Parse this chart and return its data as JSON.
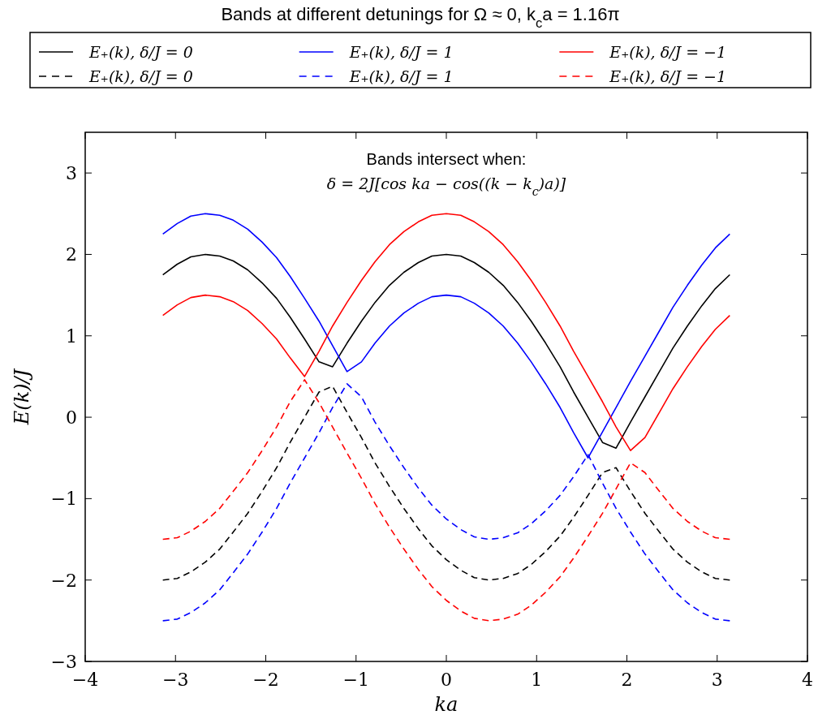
{
  "chart_data": {
    "type": "line",
    "title": "Bands at different detunings for Ω ≈ 0, k$_{c}$a = 1.16π",
    "xlabel": "ka",
    "ylabel": "E(k)/J",
    "annotations": [
      "Bands intersect when:",
      "δ = 2J[cos ka − cos((k − k$_{c}$)a)]"
    ],
    "x": [
      -3.14,
      -2.98,
      -2.83,
      -2.67,
      -2.51,
      -2.36,
      -2.2,
      -2.04,
      -1.88,
      -1.73,
      -1.57,
      -1.41,
      -1.26,
      -1.1,
      -0.94,
      -0.79,
      -0.63,
      -0.47,
      -0.31,
      -0.16,
      0,
      0.16,
      0.31,
      0.47,
      0.63,
      0.79,
      0.94,
      1.1,
      1.26,
      1.41,
      1.57,
      1.73,
      1.88,
      2.04,
      2.2,
      2.36,
      2.51,
      2.67,
      2.83,
      2.98,
      3.14
    ],
    "series": [
      {
        "name": "E₊(k), δ/J = 0",
        "color": "#000000",
        "line_style": "solid",
        "values": [
          1.75,
          1.88,
          1.97,
          2.0,
          1.98,
          1.92,
          1.81,
          1.65,
          1.46,
          1.23,
          0.96,
          0.68,
          0.62,
          0.91,
          1.18,
          1.41,
          1.62,
          1.78,
          1.9,
          1.98,
          2.0,
          1.98,
          1.9,
          1.78,
          1.62,
          1.41,
          1.18,
          0.91,
          0.62,
          0.31,
          0.0,
          -0.31,
          -0.38,
          -0.06,
          0.25,
          0.56,
          0.85,
          1.12,
          1.37,
          1.58,
          1.75
        ]
      },
      {
        "name": "E₊(k), δ/J = 0",
        "color": "#000000",
        "line_style": "dashed",
        "values": [
          -2.0,
          -1.98,
          -1.9,
          -1.78,
          -1.62,
          -1.41,
          -1.18,
          -0.91,
          -0.62,
          -0.31,
          0.0,
          0.31,
          0.38,
          0.06,
          -0.25,
          -0.56,
          -0.85,
          -1.12,
          -1.37,
          -1.58,
          -1.75,
          -1.88,
          -1.97,
          -2.0,
          -1.98,
          -1.92,
          -1.81,
          -1.65,
          -1.46,
          -1.23,
          -0.96,
          -0.68,
          -0.62,
          -0.91,
          -1.18,
          -1.41,
          -1.62,
          -1.78,
          -1.9,
          -1.98,
          -2.0
        ]
      },
      {
        "name": "E₊(k), δ/J = 1",
        "color": "#0000ff",
        "line_style": "solid",
        "values": [
          2.25,
          2.38,
          2.47,
          2.5,
          2.48,
          2.42,
          2.31,
          2.15,
          1.96,
          1.73,
          1.46,
          1.18,
          0.88,
          0.56,
          0.68,
          0.91,
          1.12,
          1.28,
          1.4,
          1.48,
          1.5,
          1.48,
          1.4,
          1.28,
          1.12,
          0.91,
          0.68,
          0.41,
          0.12,
          -0.19,
          -0.5,
          -0.18,
          0.12,
          0.44,
          0.75,
          1.06,
          1.35,
          1.62,
          1.87,
          2.08,
          2.25
        ]
      },
      {
        "name": "E₊(k), δ/J = 1",
        "color": "#0000ff",
        "line_style": "dashed",
        "values": [
          -2.5,
          -2.48,
          -2.4,
          -2.28,
          -2.12,
          -1.91,
          -1.68,
          -1.41,
          -1.12,
          -0.81,
          -0.5,
          -0.19,
          0.12,
          0.41,
          0.25,
          -0.06,
          -0.35,
          -0.62,
          -0.87,
          -1.08,
          -1.25,
          -1.38,
          -1.47,
          -1.5,
          -1.48,
          -1.42,
          -1.31,
          -1.15,
          -0.96,
          -0.73,
          -0.46,
          -0.81,
          -1.12,
          -1.41,
          -1.68,
          -1.91,
          -2.12,
          -2.28,
          -2.4,
          -2.48,
          -2.5
        ]
      },
      {
        "name": "E₊(k), δ/J = −1",
        "color": "#ff0000",
        "line_style": "solid",
        "values": [
          1.25,
          1.38,
          1.47,
          1.5,
          1.48,
          1.42,
          1.31,
          1.15,
          0.96,
          0.73,
          0.5,
          0.81,
          1.12,
          1.41,
          1.68,
          1.91,
          2.12,
          2.28,
          2.4,
          2.48,
          2.5,
          2.48,
          2.4,
          2.28,
          2.12,
          1.91,
          1.68,
          1.41,
          1.12,
          0.81,
          0.5,
          0.19,
          -0.12,
          -0.41,
          -0.25,
          0.06,
          0.35,
          0.62,
          0.87,
          1.08,
          1.25
        ]
      },
      {
        "name": "E₊(k), δ/J = −1",
        "color": "#ff0000",
        "line_style": "dashed",
        "values": [
          -1.5,
          -1.48,
          -1.4,
          -1.28,
          -1.12,
          -0.91,
          -0.68,
          -0.41,
          -0.12,
          0.19,
          0.46,
          0.18,
          -0.12,
          -0.44,
          -0.75,
          -1.06,
          -1.35,
          -1.62,
          -1.87,
          -2.08,
          -2.25,
          -2.38,
          -2.47,
          -2.5,
          -2.48,
          -2.42,
          -2.31,
          -2.15,
          -1.96,
          -1.73,
          -1.46,
          -1.18,
          -0.88,
          -0.56,
          -0.68,
          -0.91,
          -1.12,
          -1.28,
          -1.4,
          -1.48,
          -1.5
        ]
      }
    ],
    "xlim": [
      -4,
      4
    ],
    "ylim": [
      -3,
      3.5
    ],
    "xticks": [
      -4,
      -3,
      -2,
      -1,
      0,
      1,
      2,
      3,
      4
    ],
    "yticks": [
      -3,
      -2,
      -1,
      0,
      1,
      2,
      3
    ],
    "grid": false,
    "legend": "top",
    "marker": "none"
  }
}
